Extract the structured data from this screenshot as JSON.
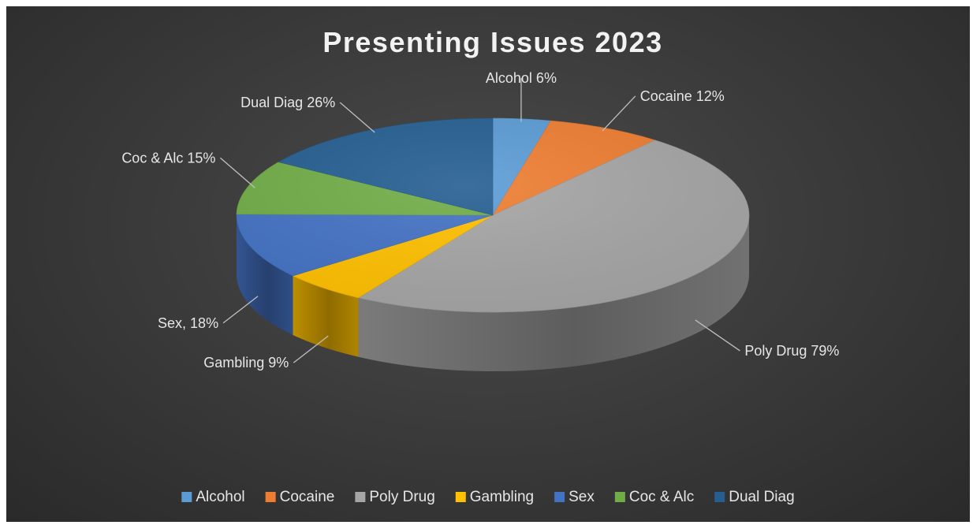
{
  "chart_data": {
    "type": "pie",
    "title": "Presenting Issues 2023",
    "slices": [
      {
        "name": "Alcohol",
        "value": 6,
        "label": "Alcohol 6%",
        "color": "#5B9BD5"
      },
      {
        "name": "Cocaine",
        "value": 12,
        "label": "Cocaine 12%",
        "color": "#ED7D31"
      },
      {
        "name": "Poly Drug",
        "value": 79,
        "label": "Poly Drug 79%",
        "color": "#A5A5A5"
      },
      {
        "name": "Gambling",
        "value": 9,
        "label": "Gambling 9%",
        "color": "#FFC000"
      },
      {
        "name": "Sex",
        "value": 18,
        "label": "Sex, 18%",
        "color": "#4472C4"
      },
      {
        "name": "Coc & Alc",
        "value": 15,
        "label": "Coc & Alc 15%",
        "color": "#70AD47"
      },
      {
        "name": "Dual Diag",
        "value": 26,
        "label": "Dual Diag 26%",
        "color": "#255E91"
      }
    ],
    "legend_position": "bottom",
    "style": "3d-pie"
  }
}
